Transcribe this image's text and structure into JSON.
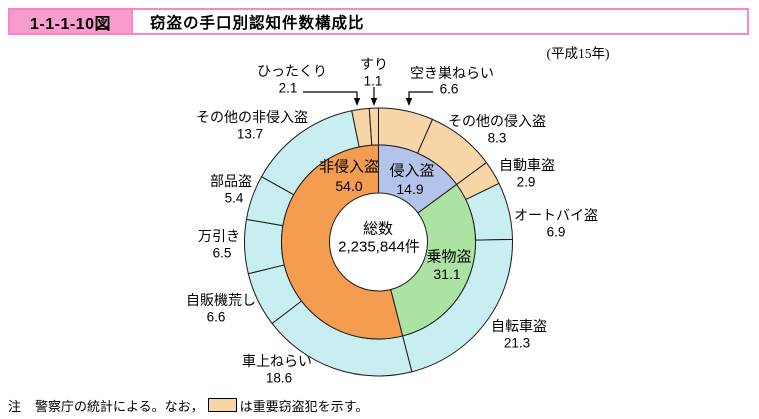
{
  "header": {
    "figure_no": "1-1-1-10図",
    "title": "窃盗の手口別認知件数構成比"
  },
  "year_label": "(平成15年)",
  "note": {
    "marker": "注",
    "prefix": "警察庁の統計による。なお，",
    "suffix": "は重要窃盗犯を示す。",
    "swatch_color": "#f8d5a6"
  },
  "chart_data": {
    "type": "pie",
    "subtype": "double-donut",
    "title": "窃盗の手口別認知件数構成比",
    "year": "平成15年",
    "unit": "%",
    "start_angle_deg": 0,
    "direction": "clockwise",
    "center": {
      "label": "総数",
      "value": "2,235,844件"
    },
    "colors": {
      "intrusion_inner": "#b3c3ea",
      "vehicle_inner": "#ace2a2",
      "non_intrusion_inner": "#f49c50",
      "important_outer": "#f8d5a6",
      "other_outer": "#c9eef2",
      "outline": "#1a1a1a"
    },
    "inner_ring": [
      {
        "label": "侵入盗",
        "value": 14.9,
        "color": "#b3c3ea"
      },
      {
        "label": "乗物盗",
        "value": 31.1,
        "color": "#ace2a2"
      },
      {
        "label": "非侵入盗",
        "value": 54.0,
        "color": "#f49c50"
      }
    ],
    "outer_ring": [
      {
        "label": "空き巣ねらい",
        "value": 6.6,
        "color": "#f8d5a6",
        "important": true
      },
      {
        "label": "その他の侵入盗",
        "value": 8.3,
        "color": "#f8d5a6",
        "important": true
      },
      {
        "label": "自動車盗",
        "value": 2.9,
        "color": "#f8d5a6",
        "important": true
      },
      {
        "label": "オートバイ盗",
        "value": 6.9,
        "color": "#c9eef2",
        "important": false
      },
      {
        "label": "自転車盗",
        "value": 21.3,
        "color": "#c9eef2",
        "important": false
      },
      {
        "label": "車上ねらい",
        "value": 18.6,
        "color": "#c9eef2",
        "important": false
      },
      {
        "label": "自販機荒し",
        "value": 6.6,
        "color": "#c9eef2",
        "important": false
      },
      {
        "label": "万引き",
        "value": 6.5,
        "color": "#c9eef2",
        "important": false
      },
      {
        "label": "部品盗",
        "value": 5.4,
        "color": "#c9eef2",
        "important": false
      },
      {
        "label": "その他の非侵入盗",
        "value": 13.7,
        "color": "#c9eef2",
        "important": false
      },
      {
        "label": "ひったくり",
        "value": 2.1,
        "color": "#f8d5a6",
        "important": true
      },
      {
        "label": "すり",
        "value": 1.1,
        "color": "#f8d5a6",
        "important": true
      }
    ],
    "legend_note": "橙色（薄いオレンジ）の区分は重要窃盗犯"
  }
}
